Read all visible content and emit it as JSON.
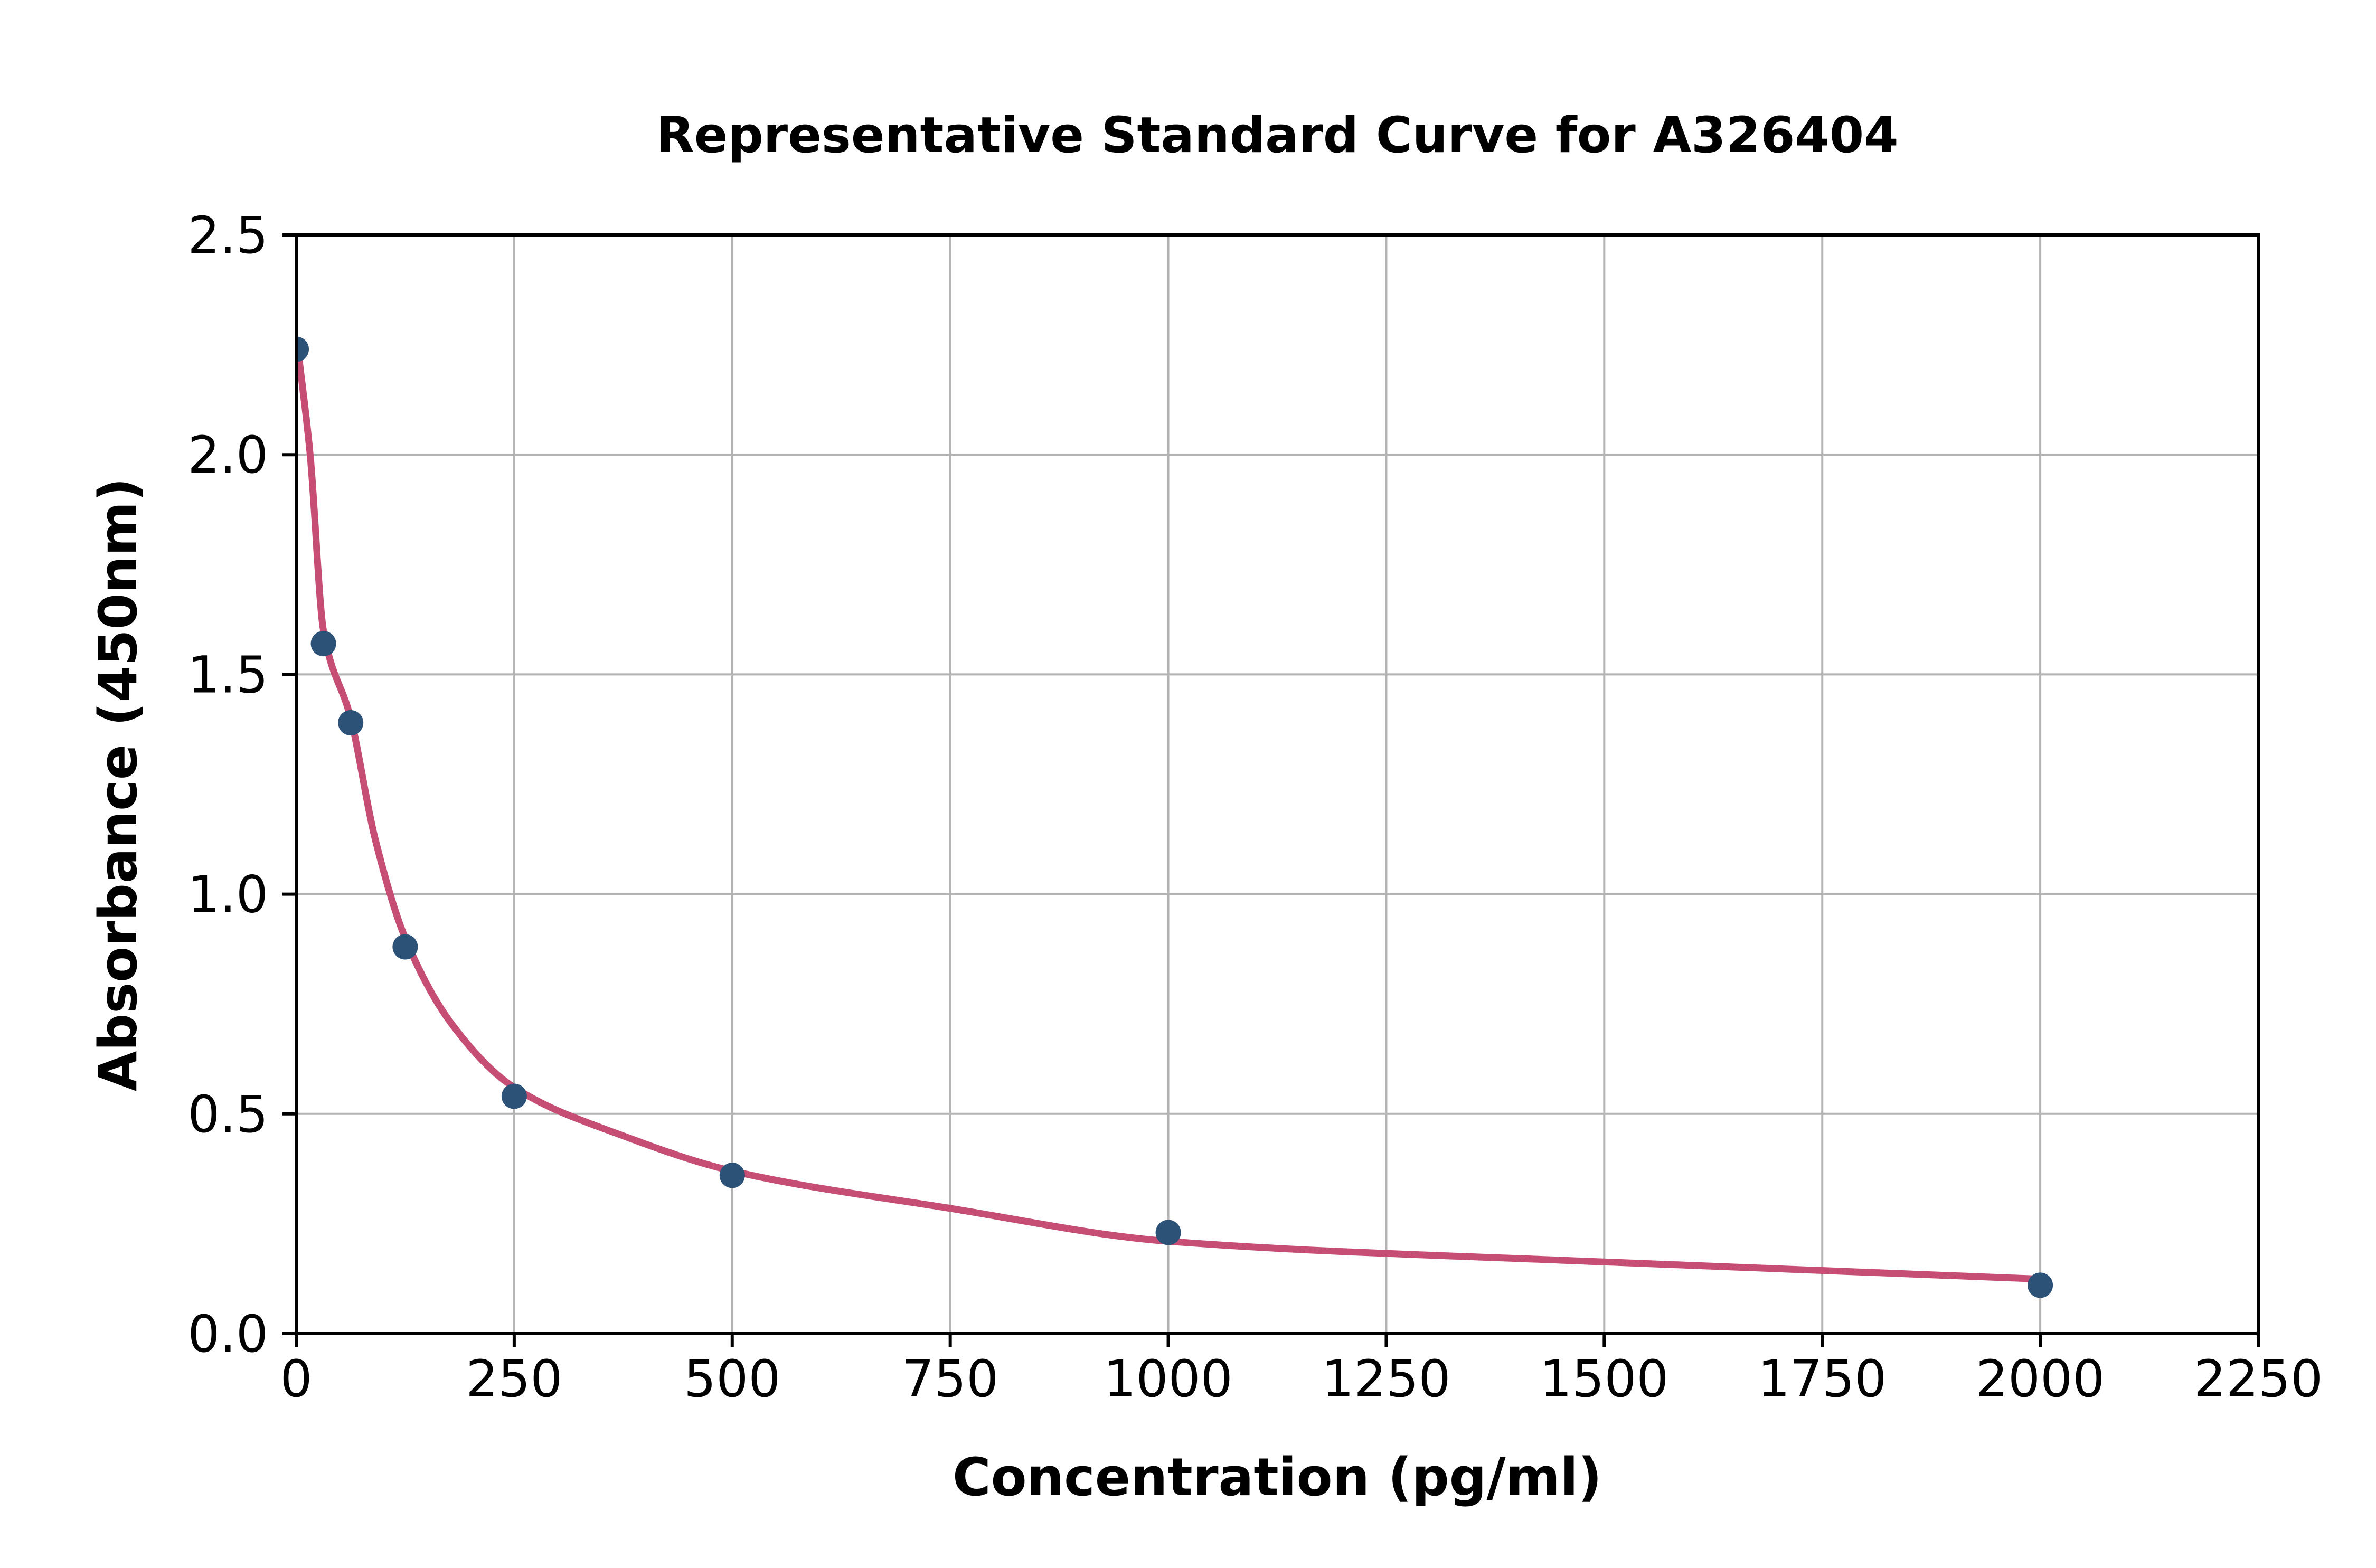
{
  "chart_data": {
    "type": "scatter",
    "title": "Representative Standard Curve for A326404",
    "xlabel": "Concentration (pg/ml)",
    "ylabel": "Absorbance (450nm)",
    "xlim": [
      0,
      2250
    ],
    "ylim": [
      0.0,
      2.5
    ],
    "grid": true,
    "legend": "none",
    "xticks": {
      "values": [
        0,
        250,
        500,
        750,
        1000,
        1250,
        1500,
        1750,
        2000,
        2250
      ],
      "labels": [
        "0",
        "250",
        "500",
        "750",
        "1000",
        "1250",
        "1500",
        "1750",
        "2000",
        "2250"
      ]
    },
    "yticks": {
      "values": [
        0.0,
        0.5,
        1.0,
        1.5,
        2.0,
        2.5
      ],
      "labels": [
        "0.0",
        "0.5",
        "1.0",
        "1.5",
        "2.0",
        "2.5"
      ]
    },
    "series": [
      {
        "name": "standards",
        "style": "scatter",
        "x": [
          0,
          31.25,
          62.5,
          125,
          250,
          500,
          1000,
          2000
        ],
        "y": [
          2.24,
          1.57,
          1.39,
          0.88,
          0.54,
          0.36,
          0.23,
          0.11
        ]
      },
      {
        "name": "4pl-fit-curve",
        "style": "line",
        "x": [
          2,
          16,
          31.25,
          62.5,
          90,
          125,
          180,
          250,
          375,
          500,
          750,
          1000,
          1500,
          2000
        ],
        "y": [
          2.24,
          2.0,
          1.6,
          1.4,
          1.13,
          0.9,
          0.7,
          0.56,
          0.45,
          0.37,
          0.285,
          0.21,
          0.163,
          0.124
        ]
      }
    ],
    "colors": {
      "marker": "#2d5278",
      "curve": "#c64d73",
      "grid": "#b3b3b3",
      "axis": "#000000",
      "background": "#ffffff"
    }
  }
}
